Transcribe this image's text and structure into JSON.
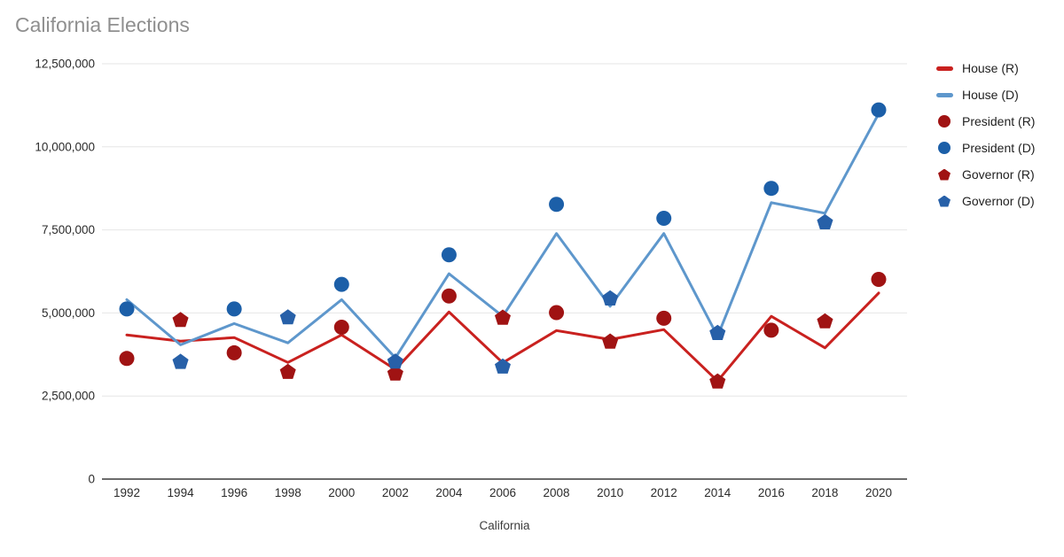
{
  "title": "California Elections",
  "colors": {
    "house_r": "#c9211f",
    "house_d": "#5e97cc",
    "president_r": "#a01313",
    "president_d": "#1c5fa8",
    "governor_r": "#a01313",
    "governor_d": "#2760a8",
    "gridline": "#e6e6e6",
    "baseline": "#6b6b6b",
    "tick_label": "#2b2b2b",
    "axis_title": "#3c3c3c",
    "title_color": "#8f8f8f"
  },
  "chart_data": {
    "type": "line",
    "title": "California Elections",
    "xlabel": "California",
    "ylabel": "",
    "ylim": [
      0,
      12500000
    ],
    "grid": true,
    "legend_position": "right",
    "y_ticks": [
      {
        "value": 0,
        "label": "0"
      },
      {
        "value": 2500000,
        "label": "2,500,000"
      },
      {
        "value": 5000000,
        "label": "5,000,000"
      },
      {
        "value": 7500000,
        "label": "7,500,000"
      },
      {
        "value": 10000000,
        "label": "10,000,000"
      },
      {
        "value": 12500000,
        "label": "12,500,000"
      }
    ],
    "categories": [
      1992,
      1994,
      1996,
      1998,
      2000,
      2002,
      2004,
      2006,
      2008,
      2010,
      2012,
      2014,
      2016,
      2018,
      2020
    ],
    "series": [
      {
        "name": "House (R)",
        "render": "line",
        "marker": "line",
        "color": "#c9211f",
        "x": [
          1992,
          1994,
          1996,
          1998,
          2000,
          2002,
          2004,
          2006,
          2008,
          2010,
          2012,
          2014,
          2016,
          2018,
          2020
        ],
        "values": [
          4340000,
          4150000,
          4260000,
          3510000,
          4340000,
          3300000,
          5030000,
          3500000,
          4470000,
          4200000,
          4500000,
          2950000,
          4900000,
          3950000,
          5600000
        ]
      },
      {
        "name": "House (D)",
        "render": "line",
        "marker": "line",
        "color": "#5e97cc",
        "x": [
          1992,
          1994,
          1996,
          1998,
          2000,
          2002,
          2004,
          2006,
          2008,
          2010,
          2012,
          2014,
          2016,
          2018,
          2020
        ],
        "values": [
          5400000,
          4040000,
          4680000,
          4100000,
          5400000,
          3650000,
          6180000,
          4900000,
          7390000,
          5200000,
          7390000,
          4300000,
          8320000,
          8000000,
          11000000
        ]
      },
      {
        "name": "President (R)",
        "render": "scatter",
        "marker": "circle",
        "color": "#a01313",
        "x": [
          1992,
          1996,
          2000,
          2004,
          2008,
          2012,
          2016,
          2020
        ],
        "values": [
          3630000,
          3800000,
          4570000,
          5510000,
          5010000,
          4840000,
          4480000,
          6010000
        ]
      },
      {
        "name": "President (D)",
        "render": "scatter",
        "marker": "circle",
        "color": "#1c5fa8",
        "x": [
          1992,
          1996,
          2000,
          2004,
          2008,
          2012,
          2016,
          2020
        ],
        "values": [
          5120000,
          5120000,
          5860000,
          6750000,
          8270000,
          7850000,
          8750000,
          11110000
        ]
      },
      {
        "name": "Governor (R)",
        "render": "scatter",
        "marker": "pentagon",
        "color": "#a01313",
        "x": [
          1994,
          1998,
          2002,
          2006,
          2010,
          2014,
          2018
        ],
        "values": [
          4780000,
          3220000,
          3170000,
          4850000,
          4130000,
          2930000,
          4740000
        ]
      },
      {
        "name": "Governor (D)",
        "render": "scatter",
        "marker": "pentagon",
        "color": "#2760a8",
        "x": [
          1994,
          1998,
          2002,
          2006,
          2010,
          2014,
          2018
        ],
        "values": [
          3520000,
          4860000,
          3530000,
          3380000,
          5430000,
          4390000,
          7720000
        ]
      }
    ]
  }
}
